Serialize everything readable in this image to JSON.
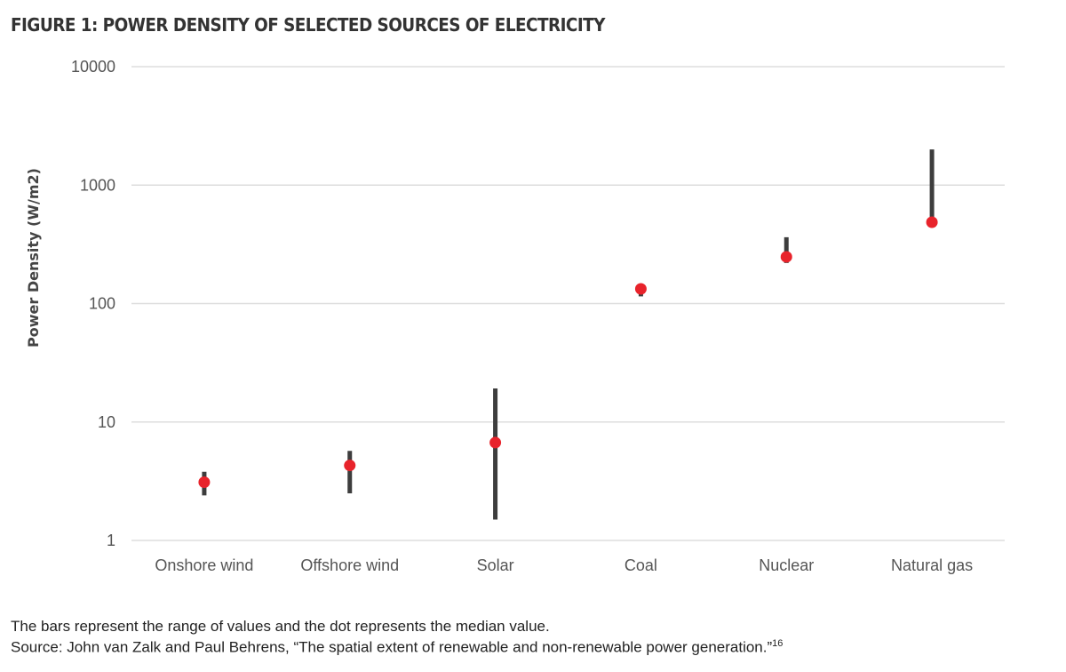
{
  "chart_data": {
    "type": "range-dot",
    "title": "FIGURE 1: POWER DENSITY OF SELECTED SOURCES OF ELECTRICITY",
    "ylabel": "Power Density (W/m2)",
    "xlabel": "",
    "yscale": "log",
    "ylim": [
      1,
      10000
    ],
    "yticks": [
      "1",
      "10",
      "100",
      "1000",
      "10000"
    ],
    "grid": true,
    "categories": [
      "Onshore wind",
      "Offshore wind",
      "Solar",
      "Coal",
      "Nuclear",
      "Natural gas"
    ],
    "series": [
      {
        "name": "range",
        "low": [
          2.4,
          2.5,
          1.5,
          115,
          220,
          486
        ],
        "high": [
          3.8,
          5.7,
          19.2,
          133,
          363,
          2000
        ]
      },
      {
        "name": "median",
        "values": [
          3.1,
          4.3,
          6.7,
          133,
          248,
          486
        ]
      }
    ],
    "colors": {
      "bar": "#3d3d3d",
      "dot": "#e8232b",
      "grid": "#dddddd"
    }
  },
  "notes": {
    "caption": "The bars represent the range of values and the dot represents the median value.",
    "source": "Source: John van Zalk and Paul Behrens, “The spatial extent of renewable and non-renewable power generation.”",
    "footnote": "16"
  }
}
